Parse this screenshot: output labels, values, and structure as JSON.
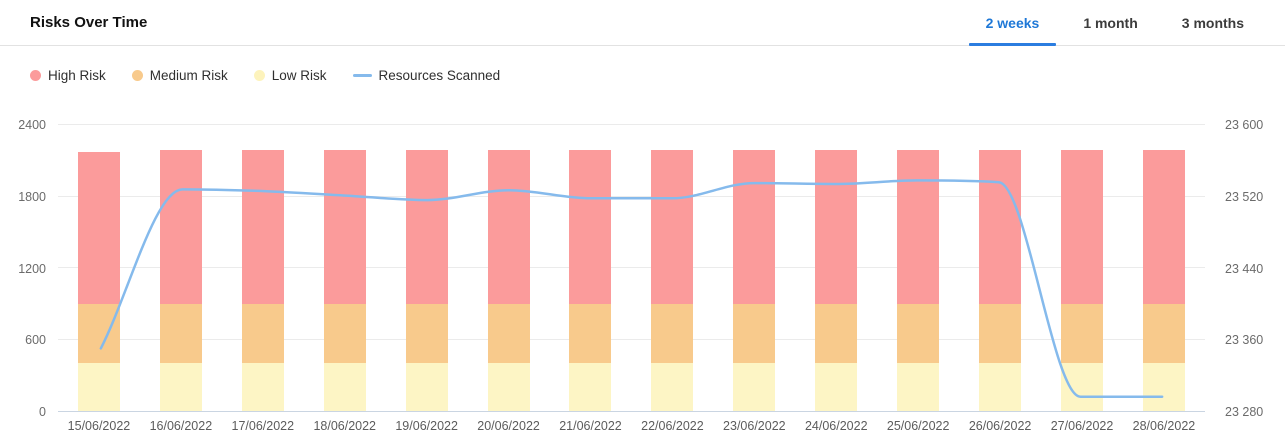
{
  "header": {
    "title": "Risks Over Time"
  },
  "tabs": [
    {
      "label": "2 weeks",
      "active": true
    },
    {
      "label": "1 month",
      "active": false
    },
    {
      "label": "3 months",
      "active": false
    }
  ],
  "legend": [
    {
      "label": "High Risk",
      "swatch": "circle",
      "color": "#FB9B9B"
    },
    {
      "label": "Medium Risk",
      "swatch": "circle",
      "color": "#F8CA8C"
    },
    {
      "label": "Low Risk",
      "swatch": "circle",
      "color": "#FDF3BC"
    },
    {
      "label": "Resources Scanned",
      "swatch": "line",
      "color": "#85BAEC"
    }
  ],
  "chart_data": {
    "type": "bar",
    "stacked": true,
    "title": "Risks Over Time",
    "grid": true,
    "legend_position": "top-left",
    "categories": [
      "15/06/2022",
      "16/06/2022",
      "17/06/2022",
      "18/06/2022",
      "19/06/2022",
      "20/06/2022",
      "21/06/2022",
      "22/06/2022",
      "23/06/2022",
      "24/06/2022",
      "25/06/2022",
      "26/06/2022",
      "27/06/2022",
      "28/06/2022"
    ],
    "series": [
      {
        "name": "Low Risk",
        "type": "bar",
        "color": "#FDF5C5",
        "values": [
          400,
          400,
          400,
          400,
          400,
          400,
          400,
          400,
          400,
          400,
          400,
          400,
          400,
          400
        ]
      },
      {
        "name": "Medium Risk",
        "type": "bar",
        "color": "#F8CA8C",
        "values": [
          500,
          500,
          500,
          500,
          500,
          500,
          500,
          500,
          500,
          500,
          500,
          500,
          500,
          500
        ]
      },
      {
        "name": "High Risk",
        "type": "bar",
        "color": "#FB9B9B",
        "values": [
          1270,
          1290,
          1290,
          1290,
          1290,
          1290,
          1290,
          1290,
          1290,
          1290,
          1290,
          1290,
          1290,
          1290
        ]
      },
      {
        "name": "Resources Scanned",
        "type": "line",
        "color": "#85BAEC",
        "yaxis": "right",
        "values": [
          23350,
          23528,
          23526,
          23521,
          23516,
          23527,
          23518,
          23518,
          23535,
          23534,
          23538,
          23536,
          23296,
          23296
        ]
      }
    ],
    "left_axis": {
      "min": 0,
      "max": 2400,
      "ticks": [
        "0",
        "600",
        "1200",
        "1800",
        "2400"
      ]
    },
    "right_axis": {
      "min": 23280,
      "max": 23600,
      "ticks": [
        "23 280",
        "23 360",
        "23 440",
        "23 520",
        "23 600"
      ]
    },
    "colors": {
      "grid": "#EBEBEB",
      "baseline": "#CAD5E2",
      "tick_text": "#6B6B6B",
      "active_tab": "#1E78D7",
      "tab_underline": "#2B7DE0"
    }
  }
}
